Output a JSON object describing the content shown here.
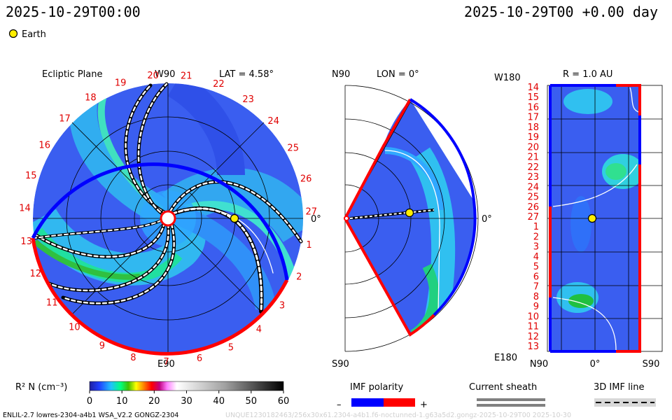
{
  "header": {
    "left_datetime": "2025-10-29T00:00",
    "right_datetime": "2025-10-29T00 +0.00 day",
    "earth_legend": "Earth"
  },
  "colors": {
    "earth": "#ffee00",
    "polarity_negative": "#0000ff",
    "polarity_positive": "#ff0000",
    "sheath": "#808080",
    "background_field": "#3050e8"
  },
  "chart_data": [
    {
      "type": "heatmap",
      "panel": "ecliptic",
      "title": "Ecliptic Plane",
      "top_label": "W90",
      "bottom_label": "E90",
      "right_label": "0°",
      "lat_label": "LAT = 4.58°",
      "carrington_ticks": [
        "20",
        "21",
        "22",
        "23",
        "24",
        "25",
        "26",
        "27",
        "1",
        "2",
        "3",
        "4",
        "5",
        "6",
        "7",
        "8",
        "9",
        "10",
        "11",
        "12",
        "13",
        "14",
        "15",
        "16",
        "17",
        "18",
        "19"
      ]
    },
    {
      "type": "heatmap",
      "panel": "meridional",
      "top_label": "N90",
      "bottom_label": "S90",
      "right_label": "0°",
      "lon_label": "LON = 0°"
    },
    {
      "type": "heatmap",
      "panel": "radial",
      "title": "R = 1.0 AU",
      "top_label": "W180",
      "bottom_label": "E180",
      "x_ticks": [
        "N90",
        "0°",
        "S90"
      ],
      "y_ticks": [
        "14",
        "15",
        "16",
        "17",
        "18",
        "19",
        "20",
        "21",
        "22",
        "23",
        "24",
        "25",
        "26",
        "27",
        "1",
        "2",
        "3",
        "4",
        "5",
        "6",
        "7",
        "8",
        "9",
        "10",
        "11",
        "12",
        "13"
      ]
    },
    {
      "type": "heatmap",
      "panel": "colorbar",
      "label": "R² N (cm⁻³)",
      "ticks": [
        "0",
        "10",
        "20",
        "30",
        "40",
        "50",
        "60"
      ],
      "range": [
        0,
        60
      ]
    }
  ],
  "legend": {
    "imf_polarity": "IMF polarity",
    "minus": "–",
    "plus": "+",
    "current_sheath": "Current sheath",
    "imf_line": "3D IMF line"
  },
  "footer": {
    "model": "ENLIL-2.7 lowres-2304-a4b1 WSA_V2.2 GONGZ-2304",
    "run_id": "UNQUE1230182463/256x30x61.2304-a4b1.f6-noctunned-1.g63a5d2.gongz-2025-10-29T00   2025-10-30"
  }
}
